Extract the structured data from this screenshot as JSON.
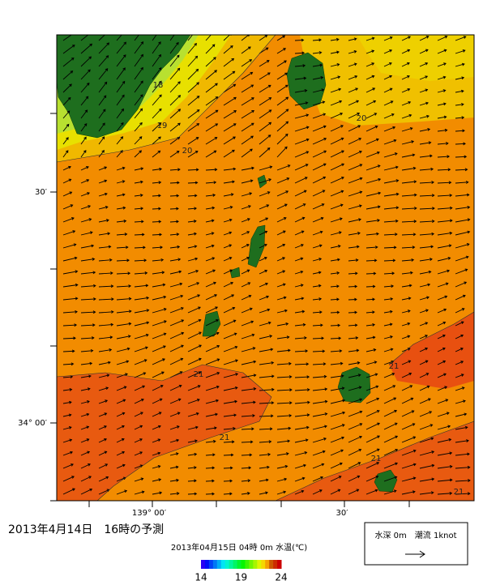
{
  "map": {
    "title": "2013年4月14日　16時の予測",
    "subtitle": "2013年04月15日 04時 0m 水温(℃)",
    "lat_labels": [
      "30′",
      "34° 00′"
    ],
    "lon_labels": [
      "139° 00′",
      "30′"
    ],
    "contour_labels": [
      "18",
      "19",
      "20",
      "20",
      "21",
      "21",
      "21",
      "21",
      "21"
    ],
    "colorbar": {
      "ticks": [
        14,
        19,
        24
      ]
    },
    "legend": "水深 0m　潮流 1knot"
  }
}
